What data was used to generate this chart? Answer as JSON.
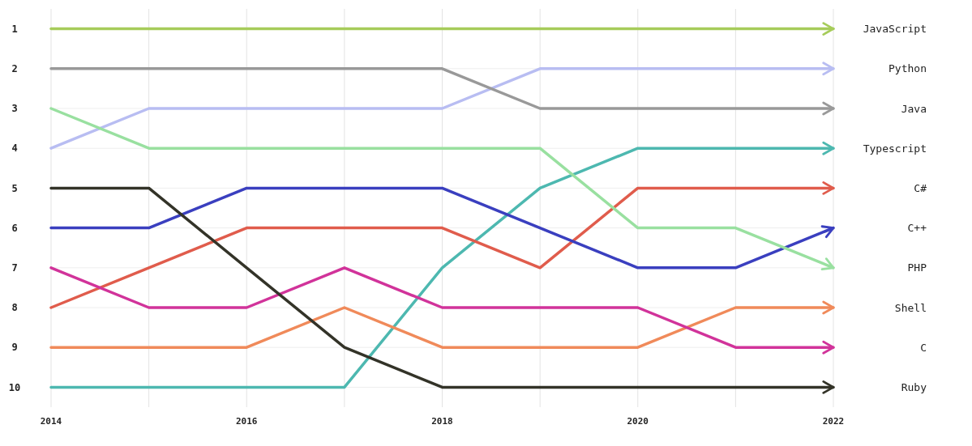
{
  "chart_data": {
    "type": "line",
    "x": [
      2014,
      2015,
      2016,
      2017,
      2018,
      2019,
      2020,
      2021,
      2022
    ],
    "series": [
      {
        "name": "JavaScript",
        "color": "#a6cc5a",
        "values": [
          1,
          1,
          1,
          1,
          1,
          1,
          1,
          1,
          1
        ]
      },
      {
        "name": "Python",
        "color": "#b8bdf2",
        "values": [
          4,
          3,
          3,
          3,
          3,
          2,
          2,
          2,
          2
        ]
      },
      {
        "name": "Java",
        "color": "#999999",
        "values": [
          2,
          2,
          2,
          2,
          2,
          3,
          3,
          3,
          3
        ]
      },
      {
        "name": "Typescript",
        "color": "#4db8b0",
        "values": [
          10,
          10,
          10,
          10,
          7,
          5,
          4,
          4,
          4
        ]
      },
      {
        "name": "C#",
        "color": "#e05c4c",
        "values": [
          8,
          7,
          6,
          6,
          6,
          7,
          5,
          5,
          5
        ]
      },
      {
        "name": "C++",
        "color": "#3a3fbf",
        "values": [
          6,
          6,
          5,
          5,
          5,
          6,
          7,
          7,
          6
        ]
      },
      {
        "name": "PHP",
        "color": "#99e0a0",
        "values": [
          3,
          4,
          4,
          4,
          4,
          4,
          6,
          6,
          7
        ]
      },
      {
        "name": "Shell",
        "color": "#f08a5a",
        "values": [
          9,
          9,
          9,
          8,
          9,
          9,
          9,
          8,
          8
        ]
      },
      {
        "name": "C",
        "color": "#d1339a",
        "values": [
          7,
          8,
          8,
          7,
          8,
          8,
          8,
          9,
          9
        ]
      },
      {
        "name": "Ruby",
        "color": "#333328",
        "values": [
          5,
          5,
          7,
          9,
          10,
          10,
          10,
          10,
          10
        ]
      }
    ],
    "xlim": [
      2014,
      2022
    ],
    "xticks": [
      2014,
      2016,
      2018,
      2020,
      2022
    ],
    "ylim": [
      10.5,
      0.5
    ],
    "yticks": [
      1,
      2,
      3,
      4,
      5,
      6,
      7,
      8,
      9,
      10
    ],
    "grid": true
  }
}
